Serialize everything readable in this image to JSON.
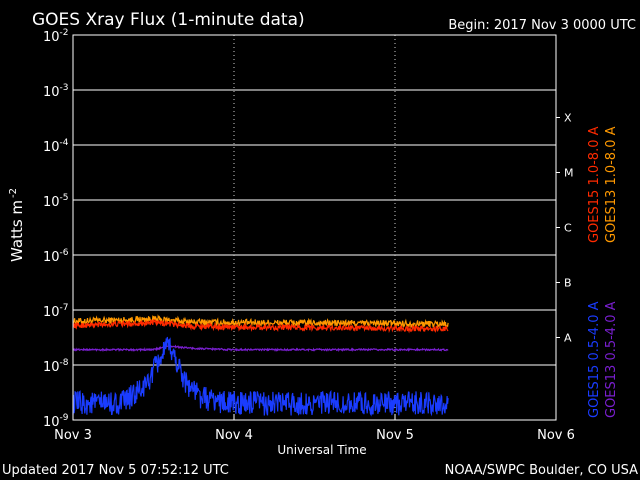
{
  "chart_data": {
    "type": "line",
    "title": "GOES Xray Flux (1-minute data)",
    "begin_label": "Begin:  2017 Nov 3 0000 UTC",
    "xlabel": "Universal Time",
    "ylabel": "Watts m",
    "ylabel_sup": "-2",
    "y_scale": "log",
    "ylim": [
      1e-09,
      0.01
    ],
    "xlim_days": [
      0,
      3
    ],
    "x_ticks": [
      {
        "day": 0,
        "label": "Nov 3"
      },
      {
        "day": 1,
        "label": "Nov 4"
      },
      {
        "day": 2,
        "label": "Nov 5"
      },
      {
        "day": 3,
        "label": "Nov 6"
      }
    ],
    "y_ticks": [
      {
        "exp": -2,
        "label": "10",
        "sup": "-2"
      },
      {
        "exp": -3,
        "label": "10",
        "sup": "-3"
      },
      {
        "exp": -4,
        "label": "10",
        "sup": "-4"
      },
      {
        "exp": -5,
        "label": "10",
        "sup": "-5"
      },
      {
        "exp": -6,
        "label": "10",
        "sup": "-6"
      },
      {
        "exp": -7,
        "label": "10",
        "sup": "-7"
      },
      {
        "exp": -8,
        "label": "10",
        "sup": "-8"
      },
      {
        "exp": -9,
        "label": "10",
        "sup": "-9"
      }
    ],
    "flare_classes": [
      {
        "label": "X",
        "exp": -3.5
      },
      {
        "label": "M",
        "exp": -4.5
      },
      {
        "label": "C",
        "exp": -5.5
      },
      {
        "label": "B",
        "exp": -6.5
      },
      {
        "label": "A",
        "exp": -7.5
      }
    ],
    "grid": true,
    "legend_long": [
      {
        "label": "GOES15 1.0-8.0 A",
        "color": "#ff2a00"
      },
      {
        "label": "GOES13 1.0-8.0 A",
        "color": "#ff9900"
      }
    ],
    "legend_short": [
      {
        "label": "GOES15 0.5-4.0 A",
        "color": "#1a3cff"
      },
      {
        "label": "GOES13 0.5-4.0 A",
        "color": "#7a1fd0"
      }
    ],
    "series": [
      {
        "name": "GOES13 1.0-8.0 A",
        "color": "#ff9900",
        "base_log": -7.24,
        "noise": 0.06,
        "x": [
          0,
          0.25,
          0.5,
          0.6,
          0.75,
          1.0,
          1.5,
          2.0,
          2.33
        ],
        "y": [
          6.2e-08,
          6.5e-08,
          6.8e-08,
          6.5e-08,
          6e-08,
          5.9e-08,
          5.8e-08,
          5.7e-08,
          5.6e-08
        ]
      },
      {
        "name": "GOES15 1.0-8.0 A",
        "color": "#ff2a00",
        "base_log": -7.3,
        "noise": 0.05,
        "x": [
          0,
          0.25,
          0.5,
          0.6,
          0.75,
          1.0,
          1.5,
          2.0,
          2.33
        ],
        "y": [
          5.2e-08,
          5.5e-08,
          5.9e-08,
          5.6e-08,
          5.1e-08,
          4.9e-08,
          4.8e-08,
          4.6e-08,
          4.5e-08
        ]
      },
      {
        "name": "GOES13 0.5-4.0 A",
        "color": "#7a1fd0",
        "base_log": -7.72,
        "noise": 0.015,
        "x": [
          0,
          0.5,
          0.6,
          0.75,
          1.0,
          2.0,
          2.33
        ],
        "y": [
          1.9e-08,
          1.9e-08,
          2.2e-08,
          2e-08,
          1.9e-08,
          1.9e-08,
          1.9e-08
        ]
      },
      {
        "name": "GOES15 0.5-4.0 A",
        "color": "#1a3cff",
        "base_log": -8.7,
        "noise": 0.22,
        "x": [
          0,
          0.3,
          0.45,
          0.55,
          0.6,
          0.7,
          0.8,
          1.0,
          1.5,
          2.0,
          2.33
        ],
        "y": [
          2e-09,
          2e-09,
          4e-09,
          1.5e-08,
          2.2e-08,
          5e-09,
          2.5e-09,
          2e-09,
          2e-09,
          2e-09,
          2e-09
        ]
      }
    ]
  },
  "footer": {
    "updated": "Updated 2017 Nov  5 07:52:12 UTC",
    "credit": "NOAA/SWPC Boulder, CO USA"
  }
}
